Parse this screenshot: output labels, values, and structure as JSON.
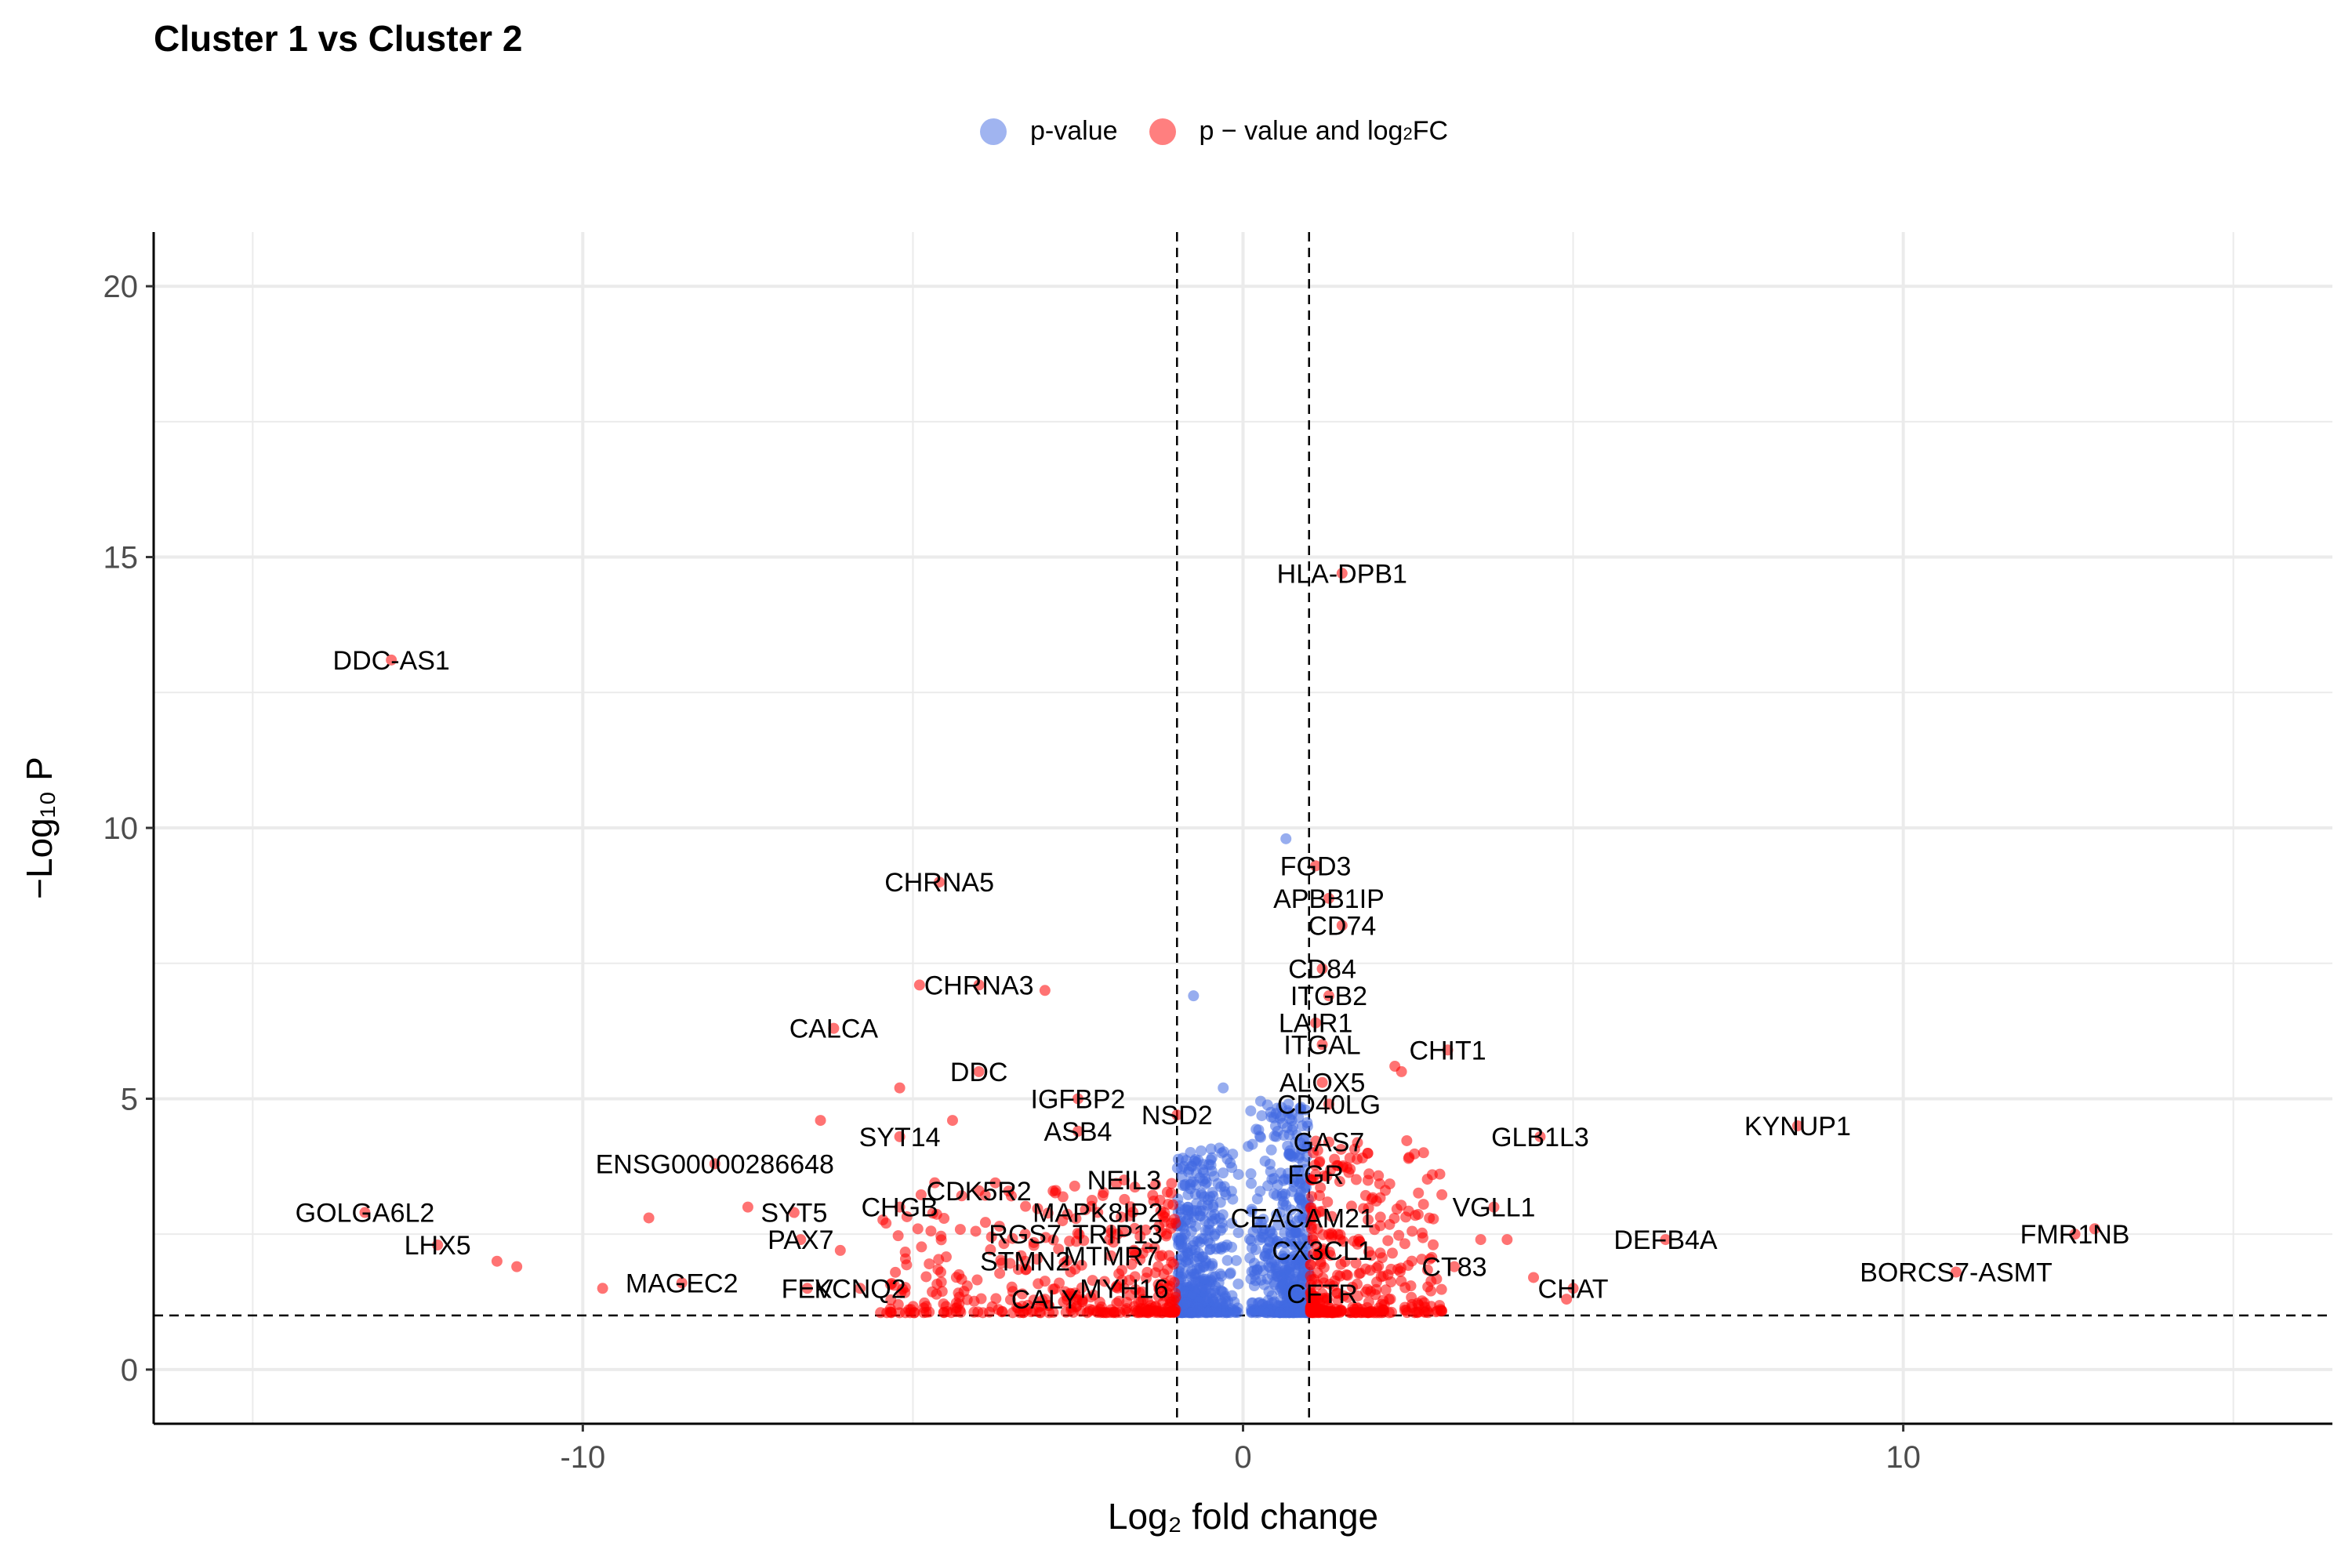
{
  "title": "Cluster 1 vs Cluster 2",
  "legend": {
    "items": [
      {
        "label": "p-value",
        "color": "#4169E1"
      },
      {
        "label_main": "p − value and log",
        "label_sub": "2",
        "label_tail": " FC",
        "color": "#FF0000"
      }
    ]
  },
  "chart_data": {
    "type": "scatter",
    "title": "Cluster 1 vs Cluster 2",
    "xlabel": "Log₂ fold change",
    "ylabel": "−Log₁₀ P",
    "xlim": [
      -16.5,
      16.5
    ],
    "ylim": [
      -1,
      21
    ],
    "x_ticks": [
      -10,
      0,
      10
    ],
    "y_ticks": [
      0,
      5,
      10,
      15,
      20
    ],
    "x_tick_labels": [
      "-10",
      "0",
      "10"
    ],
    "y_tick_labels": [
      "0",
      "5",
      "10",
      "15",
      "20"
    ],
    "grid": true,
    "legend_position": "top",
    "thresholds": {
      "log2fc": [
        -1,
        1
      ],
      "neg_log10_p": 1
    },
    "labeled_points": [
      {
        "label": "HLA-DPB1",
        "x": 1.5,
        "y": 14.7
      },
      {
        "label": "DDC-AS1",
        "x": -12.9,
        "y": 13.1
      },
      {
        "label": "FGD3",
        "x": 1.1,
        "y": 9.3
      },
      {
        "label": "CHRNA5",
        "x": -4.6,
        "y": 9.0
      },
      {
        "label": "APBB1IP",
        "x": 1.3,
        "y": 8.7
      },
      {
        "label": "CD74",
        "x": 1.5,
        "y": 8.2
      },
      {
        "label": "CD84",
        "x": 1.2,
        "y": 7.4
      },
      {
        "label": "CHRNA3",
        "x": -4.0,
        "y": 7.1
      },
      {
        "label": "ITGB2",
        "x": 1.3,
        "y": 6.9
      },
      {
        "label": "CALCA",
        "x": -6.2,
        "y": 6.3
      },
      {
        "label": "LAIR1",
        "x": 1.1,
        "y": 6.4
      },
      {
        "label": "CHIT1",
        "x": 3.1,
        "y": 5.9
      },
      {
        "label": "ITGAL",
        "x": 1.2,
        "y": 6.0
      },
      {
        "label": "DDC",
        "x": -4.0,
        "y": 5.5
      },
      {
        "label": "IGFBP2",
        "x": -2.5,
        "y": 5.0
      },
      {
        "label": "ALOX5",
        "x": 1.2,
        "y": 5.3
      },
      {
        "label": "CD40LG",
        "x": 1.3,
        "y": 4.9
      },
      {
        "label": "NSD2",
        "x": -1.0,
        "y": 4.7
      },
      {
        "label": "KYNUP1",
        "x": 8.4,
        "y": 4.5
      },
      {
        "label": "ASB4",
        "x": -2.5,
        "y": 4.4
      },
      {
        "label": "SYT14",
        "x": -5.2,
        "y": 4.3
      },
      {
        "label": "GLB1L3",
        "x": 4.5,
        "y": 4.3
      },
      {
        "label": "GAS7",
        "x": 1.3,
        "y": 4.2
      },
      {
        "label": "ENSG00000286648",
        "x": -8.0,
        "y": 3.8
      },
      {
        "label": "FGR",
        "x": 1.1,
        "y": 3.6
      },
      {
        "label": "NEIL3",
        "x": -1.8,
        "y": 3.5
      },
      {
        "label": "CDK5R2",
        "x": -4.0,
        "y": 3.3
      },
      {
        "label": "VGLL1",
        "x": 3.8,
        "y": 3.0
      },
      {
        "label": "GOLGA6L2",
        "x": -13.3,
        "y": 2.9
      },
      {
        "label": "SYT5",
        "x": -6.8,
        "y": 2.9
      },
      {
        "label": "CHGB",
        "x": -5.2,
        "y": 3.0
      },
      {
        "label": "MAPK8IP2",
        "x": -2.2,
        "y": 2.9
      },
      {
        "label": "CEACAM21",
        "x": 0.9,
        "y": 2.8
      },
      {
        "label": "RGS7",
        "x": -3.3,
        "y": 2.5
      },
      {
        "label": "TRIP13",
        "x": -1.9,
        "y": 2.5
      },
      {
        "label": "PAX7",
        "x": -6.7,
        "y": 2.4
      },
      {
        "label": "DEFB4A",
        "x": 6.4,
        "y": 2.4
      },
      {
        "label": "FMR1NB",
        "x": 12.6,
        "y": 2.5
      },
      {
        "label": "LHX5",
        "x": -12.2,
        "y": 2.3
      },
      {
        "label": "MTMR7",
        "x": -2.0,
        "y": 2.1
      },
      {
        "label": "CX3CL1",
        "x": 1.2,
        "y": 2.2
      },
      {
        "label": "STMN2",
        "x": -3.3,
        "y": 2.0
      },
      {
        "label": "CT83",
        "x": 3.2,
        "y": 1.9
      },
      {
        "label": "BORCS7-ASMT",
        "x": 10.8,
        "y": 1.8
      },
      {
        "label": "MAGEC2",
        "x": -8.5,
        "y": 1.6
      },
      {
        "label": "CHAT",
        "x": 5.0,
        "y": 1.5
      },
      {
        "label": "FEV",
        "x": -6.6,
        "y": 1.5
      },
      {
        "label": "KCNQ2",
        "x": -5.8,
        "y": 1.5
      },
      {
        "label": "MYH16",
        "x": -1.8,
        "y": 1.5
      },
      {
        "label": "CFTR",
        "x": 1.2,
        "y": 1.4
      },
      {
        "label": "CALY",
        "x": -3.0,
        "y": 1.3
      }
    ],
    "extra_points": [
      {
        "x": 0.65,
        "y": 9.8,
        "group": "p-value"
      },
      {
        "x": -0.75,
        "y": 6.9,
        "group": "p-value"
      },
      {
        "x": -0.3,
        "y": 5.2,
        "group": "p-value"
      },
      {
        "x": -4.9,
        "y": 7.1,
        "group": "p-value and log2 FC"
      },
      {
        "x": -3.0,
        "y": 7.0,
        "group": "p-value and log2 FC"
      },
      {
        "x": -5.2,
        "y": 5.2,
        "group": "p-value and log2 FC"
      },
      {
        "x": -6.4,
        "y": 4.6,
        "group": "p-value and log2 FC"
      },
      {
        "x": -4.4,
        "y": 4.6,
        "group": "p-value and log2 FC"
      },
      {
        "x": -9.0,
        "y": 2.8,
        "group": "p-value and log2 FC"
      },
      {
        "x": -7.5,
        "y": 3.0,
        "group": "p-value and log2 FC"
      },
      {
        "x": -11.3,
        "y": 2.0,
        "group": "p-value and log2 FC"
      },
      {
        "x": -11.0,
        "y": 1.9,
        "group": "p-value and log2 FC"
      },
      {
        "x": -9.7,
        "y": 1.5,
        "group": "p-value and log2 FC"
      },
      {
        "x": -6.1,
        "y": 2.2,
        "group": "p-value and log2 FC"
      },
      {
        "x": 2.4,
        "y": 5.5,
        "group": "p-value and log2 FC"
      },
      {
        "x": 2.3,
        "y": 5.6,
        "group": "p-value and log2 FC"
      },
      {
        "x": 3.6,
        "y": 2.4,
        "group": "p-value and log2 FC"
      },
      {
        "x": 4.0,
        "y": 2.4,
        "group": "p-value and log2 FC"
      },
      {
        "x": 4.4,
        "y": 1.7,
        "group": "p-value and log2 FC"
      },
      {
        "x": 4.9,
        "y": 1.3,
        "group": "p-value and log2 FC"
      },
      {
        "x": 12.9,
        "y": 2.6,
        "group": "p-value and log2 FC"
      }
    ],
    "cloud": {
      "p_value_count": 900,
      "p_value_and_log2fc_count": 700
    }
  }
}
